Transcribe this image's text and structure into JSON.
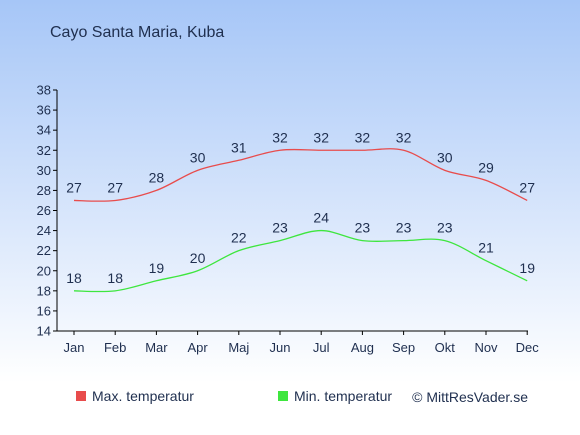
{
  "chart_data": {
    "type": "line",
    "title": "Cayo Santa Maria, Kuba",
    "categories": [
      "Jan",
      "Feb",
      "Mar",
      "Apr",
      "Maj",
      "Jun",
      "Jul",
      "Aug",
      "Sep",
      "Okt",
      "Nov",
      "Dec"
    ],
    "series": [
      {
        "name": "Max. temperatur",
        "color": "#e84c4c",
        "values": [
          27,
          27,
          28,
          30,
          31,
          32,
          32,
          32,
          32,
          30,
          29,
          27
        ]
      },
      {
        "name": "Min. temperatur",
        "color": "#3ee63e",
        "values": [
          18,
          18,
          19,
          20,
          22,
          23,
          24,
          23,
          23,
          23,
          21,
          19
        ]
      }
    ],
    "y_ticks": [
      14,
      16,
      18,
      20,
      22,
      24,
      26,
      28,
      30,
      32,
      34,
      36,
      38
    ],
    "ylim": [
      14,
      38
    ],
    "xlabel": "",
    "ylabel": "",
    "legend_position": "bottom-left",
    "grid": false,
    "colors": {
      "background_top": "#a6c6f7",
      "background_bottom": "#ffffff",
      "text": "#1f2f4f"
    }
  },
  "credit": "© MittResVader.se"
}
